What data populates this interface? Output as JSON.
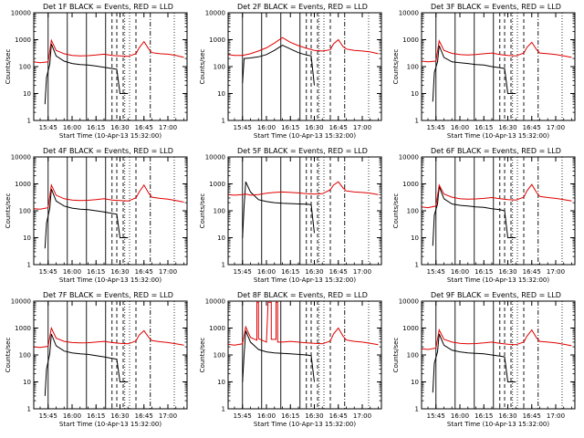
{
  "colors": {
    "background": "#ffffff",
    "events": "#000000",
    "lld": "#e00000",
    "axes": "#000000"
  },
  "chart_data": {
    "type": "line",
    "layout": "3x3 grid",
    "x_unit": "UT time on 10-Apr-13",
    "x_range": [
      "15:36",
      "17:12"
    ],
    "x_ticks": [
      "15:45",
      "16:00",
      "16:15",
      "16:30",
      "16:45",
      "17:00"
    ],
    "y_scale": "log",
    "y_range": [
      1,
      10000
    ],
    "y_ticks": [
      "1",
      "10",
      "100",
      "1000",
      "10000"
    ],
    "ylabel": "Counts/sec",
    "xlabel": "Start Time (10-Apr-13 15:32:00)",
    "series_legend": {
      "black": "Events",
      "red": "LLD"
    },
    "panels": [
      {
        "title": "Det 1F BLACK = Events, RED = LLD",
        "series": [
          {
            "name": "Events",
            "x": [
              "15:43",
              "15:44",
              "15:44",
              "15:46",
              "15:47",
              "15:50",
              "15:55",
              "16:00",
              "16:05",
              "16:10",
              "16:15",
              "16:20",
              "16:25",
              "16:28",
              "16:30",
              "16:35"
            ],
            "y": [
              4,
              40,
              40,
              120,
              700,
              250,
              160,
              130,
              120,
              115,
              105,
              95,
              85,
              80,
              10,
              10
            ]
          },
          {
            "name": "LLD",
            "x": [
              "15:36",
              "15:40",
              "15:45",
              "15:47",
              "15:50",
              "15:55",
              "16:00",
              "16:05",
              "16:10",
              "16:15",
              "16:20",
              "16:25",
              "16:30",
              "16:35",
              "16:40",
              "16:42",
              "16:45",
              "16:48",
              "16:50",
              "16:55",
              "17:00",
              "17:05",
              "17:10"
            ],
            "y": [
              150,
              140,
              150,
              950,
              400,
              300,
              260,
              250,
              255,
              270,
              290,
              260,
              250,
              240,
              300,
              500,
              850,
              450,
              330,
              300,
              290,
              260,
              220
            ]
          }
        ]
      },
      {
        "title": "Det 2F BLACK = Events, RED = LLD",
        "series": [
          {
            "name": "Events",
            "x": [
              "15:45",
              "15:46",
              "15:50",
              "15:55",
              "16:00",
              "16:05",
              "16:10",
              "16:15",
              "16:20",
              "16:25",
              "16:28",
              "16:30"
            ],
            "y": [
              25,
              200,
              210,
              230,
              280,
              400,
              620,
              450,
              330,
              270,
              250,
              20
            ]
          },
          {
            "name": "LLD",
            "x": [
              "15:36",
              "15:40",
              "15:45",
              "15:50",
              "15:55",
              "16:00",
              "16:05",
              "16:10",
              "16:15",
              "16:20",
              "16:25",
              "16:30",
              "16:35",
              "16:40",
              "16:42",
              "16:45",
              "16:48",
              "16:50",
              "16:55",
              "17:00",
              "17:05",
              "17:10"
            ],
            "y": [
              280,
              260,
              260,
              300,
              380,
              500,
              750,
              1200,
              800,
              600,
              480,
              400,
              380,
              420,
              700,
              1000,
              550,
              450,
              400,
              380,
              350,
              300
            ]
          }
        ]
      },
      {
        "title": "Det 3F BLACK = Events, RED = LLD",
        "series": [
          {
            "name": "Events",
            "x": [
              "15:43",
              "15:44",
              "15:44",
              "15:46",
              "15:47",
              "15:50",
              "15:55",
              "16:00",
              "16:05",
              "16:10",
              "16:15",
              "16:20",
              "16:25",
              "16:28",
              "16:30",
              "16:35"
            ],
            "y": [
              5,
              60,
              60,
              150,
              600,
              220,
              150,
              140,
              130,
              120,
              115,
              100,
              90,
              85,
              10,
              10
            ]
          },
          {
            "name": "LLD",
            "x": [
              "15:36",
              "15:40",
              "15:45",
              "15:47",
              "15:50",
              "15:55",
              "16:00",
              "16:05",
              "16:10",
              "16:15",
              "16:20",
              "16:25",
              "16:30",
              "16:35",
              "16:40",
              "16:42",
              "16:45",
              "16:48",
              "16:50",
              "16:55",
              "17:00",
              "17:05",
              "17:10"
            ],
            "y": [
              160,
              150,
              160,
              900,
              400,
              310,
              280,
              270,
              280,
              300,
              320,
              280,
              260,
              250,
              320,
              520,
              800,
              430,
              320,
              300,
              280,
              250,
              220
            ]
          }
        ]
      },
      {
        "title": "Det 4F BLACK = Events, RED = LLD",
        "series": [
          {
            "name": "Events",
            "x": [
              "15:43",
              "15:44",
              "15:44",
              "15:46",
              "15:47",
              "15:50",
              "15:55",
              "16:00",
              "16:05",
              "16:10",
              "16:15",
              "16:20",
              "16:25",
              "16:28",
              "16:30",
              "16:35"
            ],
            "y": [
              4,
              35,
              35,
              120,
              650,
              230,
              150,
              125,
              115,
              110,
              100,
              90,
              80,
              75,
              10,
              10
            ]
          },
          {
            "name": "LLD",
            "x": [
              "15:36",
              "15:40",
              "15:45",
              "15:47",
              "15:50",
              "15:55",
              "16:00",
              "16:05",
              "16:10",
              "16:15",
              "16:20",
              "16:25",
              "16:30",
              "16:35",
              "16:40",
              "16:42",
              "16:45",
              "16:48",
              "16:50",
              "16:55",
              "17:00",
              "17:05",
              "17:10"
            ],
            "y": [
              120,
              115,
              130,
              900,
              380,
              280,
              250,
              240,
              245,
              260,
              280,
              250,
              240,
              230,
              300,
              500,
              900,
              450,
              320,
              290,
              270,
              240,
              210
            ]
          }
        ]
      },
      {
        "title": "Det 5F BLACK = Events, RED = LLD",
        "series": [
          {
            "name": "Events",
            "x": [
              "15:45",
              "15:46",
              "15:47",
              "15:50",
              "15:55",
              "16:00",
              "16:05",
              "16:10",
              "16:15",
              "16:20",
              "16:25",
              "16:28",
              "16:30"
            ],
            "y": [
              10,
              150,
              1200,
              500,
              260,
              220,
              200,
              190,
              185,
              180,
              175,
              170,
              15
            ]
          },
          {
            "name": "LLD",
            "x": [
              "15:36",
              "15:40",
              "15:45",
              "15:47",
              "15:50",
              "15:55",
              "16:00",
              "16:05",
              "16:10",
              "16:15",
              "16:20",
              "16:25",
              "16:30",
              "16:35",
              "16:40",
              "16:42",
              "16:45",
              "16:48",
              "16:50",
              "16:55",
              "17:00",
              "17:05",
              "17:10"
            ],
            "y": [
              400,
              380,
              400,
              420,
              380,
              400,
              450,
              480,
              500,
              480,
              460,
              430,
              420,
              430,
              600,
              900,
              1200,
              700,
              550,
              500,
              480,
              450,
              400
            ]
          }
        ]
      },
      {
        "title": "Det 6F BLACK = Events, RED = LLD",
        "series": [
          {
            "name": "Events",
            "x": [
              "15:43",
              "15:44",
              "15:44",
              "15:46",
              "15:47",
              "15:50",
              "15:55",
              "16:00",
              "16:05",
              "16:10",
              "16:15",
              "16:20",
              "16:25",
              "16:28",
              "16:30",
              "16:35"
            ],
            "y": [
              5,
              70,
              70,
              180,
              800,
              280,
              180,
              160,
              150,
              140,
              135,
              120,
              110,
              100,
              10,
              10
            ]
          },
          {
            "name": "LLD",
            "x": [
              "15:36",
              "15:40",
              "15:45",
              "15:47",
              "15:50",
              "15:55",
              "16:00",
              "16:05",
              "16:10",
              "16:15",
              "16:20",
              "16:25",
              "16:30",
              "16:35",
              "16:40",
              "16:42",
              "16:45",
              "16:48",
              "16:50",
              "16:55",
              "17:00",
              "17:05",
              "17:10"
            ],
            "y": [
              140,
              130,
              150,
              900,
              420,
              320,
              280,
              270,
              275,
              290,
              310,
              280,
              260,
              250,
              320,
              550,
              950,
              480,
              340,
              310,
              290,
              260,
              230
            ]
          }
        ]
      },
      {
        "title": "Det 7F BLACK = Events, RED = LLD",
        "series": [
          {
            "name": "Events",
            "x": [
              "15:43",
              "15:44",
              "15:44",
              "15:46",
              "15:47",
              "15:50",
              "15:55",
              "16:00",
              "16:05",
              "16:10",
              "16:15",
              "16:20",
              "16:25",
              "16:28",
              "16:30",
              "16:35"
            ],
            "y": [
              3,
              30,
              30,
              110,
              600,
              220,
              140,
              120,
              110,
              105,
              95,
              85,
              75,
              70,
              10,
              10
            ]
          },
          {
            "name": "LLD",
            "x": [
              "15:36",
              "15:40",
              "15:45",
              "15:47",
              "15:50",
              "15:55",
              "16:00",
              "16:05",
              "16:10",
              "16:15",
              "16:20",
              "16:25",
              "16:30",
              "16:35",
              "16:40",
              "16:42",
              "16:45",
              "16:48",
              "16:50",
              "16:55",
              "17:00",
              "17:05",
              "17:10"
            ],
            "y": [
              200,
              190,
              210,
              1000,
              420,
              320,
              290,
              280,
              285,
              300,
              320,
              290,
              270,
              260,
              330,
              550,
              800,
              450,
              340,
              310,
              290,
              260,
              230
            ]
          }
        ]
      },
      {
        "title": "Det 8F BLACK = Events, RED = LLD",
        "series": [
          {
            "name": "Events",
            "x": [
              "15:45",
              "15:46",
              "15:47",
              "15:50",
              "15:55",
              "16:00",
              "16:05",
              "16:10",
              "16:15",
              "16:20",
              "16:25",
              "16:28",
              "16:30"
            ],
            "y": [
              10,
              100,
              800,
              300,
              160,
              130,
              120,
              115,
              110,
              105,
              100,
              95,
              10
            ]
          },
          {
            "name": "LLD",
            "x": [
              "15:36",
              "15:40",
              "15:45",
              "15:47",
              "15:50",
              "15:54",
              "15:54",
              "15:55",
              "15:55",
              "16:00",
              "16:01",
              "16:01",
              "16:03",
              "16:03",
              "16:06",
              "16:06",
              "16:07",
              "16:07",
              "16:10",
              "16:15",
              "16:20",
              "16:25",
              "16:30",
              "16:35",
              "16:40",
              "16:42",
              "16:45",
              "16:48",
              "16:50",
              "16:55",
              "17:00",
              "17:05",
              "17:10"
            ],
            "y": [
              250,
              230,
              260,
              1100,
              450,
              350,
              9000,
              9000,
              400,
              300,
              9000,
              9000,
              9000,
              380,
              380,
              9000,
              9000,
              300,
              300,
              320,
              300,
              280,
              270,
              260,
              330,
              600,
              1000,
              500,
              360,
              320,
              300,
              270,
              240
            ]
          }
        ]
      },
      {
        "title": "Det 9F BLACK = Events, RED = LLD",
        "series": [
          {
            "name": "Events",
            "x": [
              "15:43",
              "15:44",
              "15:44",
              "15:46",
              "15:47",
              "15:50",
              "15:55",
              "16:00",
              "16:05",
              "16:10",
              "16:15",
              "16:20",
              "16:25",
              "16:28",
              "16:30",
              "16:35"
            ],
            "y": [
              4,
              50,
              50,
              130,
              600,
              230,
              150,
              130,
              120,
              115,
              110,
              100,
              90,
              85,
              10,
              10
            ]
          },
          {
            "name": "LLD",
            "x": [
              "15:36",
              "15:40",
              "15:45",
              "15:47",
              "15:50",
              "15:55",
              "16:00",
              "16:05",
              "16:10",
              "16:15",
              "16:20",
              "16:25",
              "16:30",
              "16:35",
              "16:40",
              "16:42",
              "16:45",
              "16:48",
              "16:50",
              "16:55",
              "17:00",
              "17:05",
              "17:10"
            ],
            "y": [
              170,
              160,
              180,
              850,
              380,
              300,
              270,
              260,
              265,
              280,
              300,
              270,
              250,
              240,
              300,
              500,
              850,
              430,
              320,
              300,
              280,
              250,
              220
            ]
          }
        ]
      }
    ]
  }
}
